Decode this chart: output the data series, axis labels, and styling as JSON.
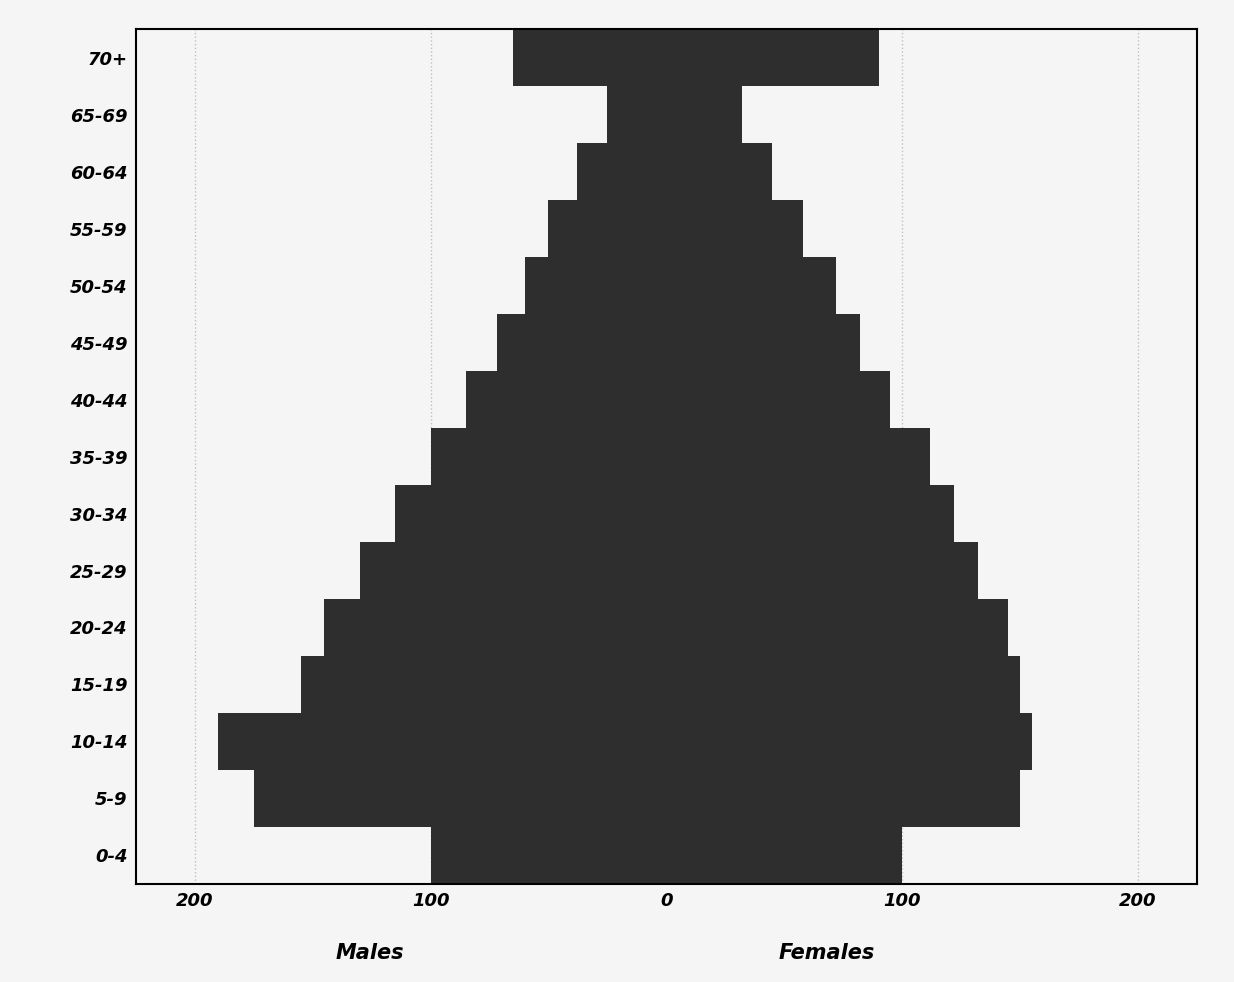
{
  "age_groups": [
    "0-4",
    "5-9",
    "10-14",
    "15-19",
    "20-24",
    "25-29",
    "30-34",
    "35-39",
    "40-44",
    "45-49",
    "50-54",
    "55-59",
    "60-64",
    "65-69",
    "70+"
  ],
  "males": [
    100,
    175,
    190,
    155,
    145,
    130,
    115,
    100,
    85,
    72,
    60,
    50,
    38,
    25,
    65
  ],
  "females": [
    100,
    150,
    155,
    150,
    145,
    132,
    122,
    112,
    95,
    82,
    72,
    58,
    45,
    32,
    90
  ],
  "bar_color": "#2e2e2e",
  "background_color": "#f5f5f5",
  "xlim": 225,
  "xticks": [
    -200,
    -100,
    0,
    100,
    200
  ],
  "xtick_labels": [
    "200",
    "100",
    "0",
    "100",
    "200"
  ],
  "xlabel_males": "Males",
  "xlabel_females": "Females",
  "grid_color": "#c0c0c0"
}
